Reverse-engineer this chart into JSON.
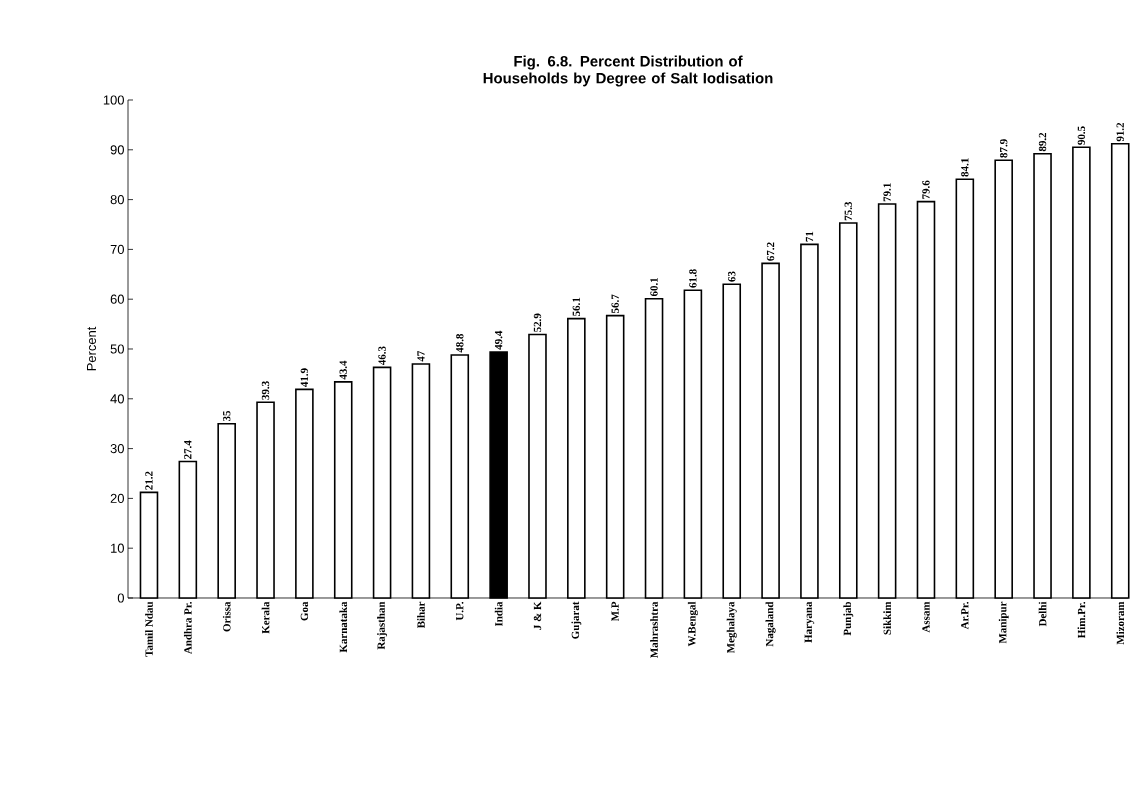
{
  "chart_data": {
    "type": "bar",
    "title": "Fig. 6.8. Percent Distribution of Households by Degree of Salt Iodisation",
    "ylabel": "Percent",
    "categories": [
      "Tamil Ndau",
      "Andhra Pr.",
      "Orissa",
      "Kerala",
      "Goa",
      "Karnataka",
      "Rajasthan",
      "Bihar",
      "U.P.",
      "India",
      "J & K",
      "Gujarat",
      "M.P",
      "Mahrashtra",
      "W.Bengal",
      "Meghalaya",
      "Nagaland",
      "Haryana",
      "Punjab",
      "Sikkim",
      "Assam",
      "Ar.Pr.",
      "Manipur",
      "Delhi",
      "Him.Pr.",
      "Mizoram"
    ],
    "values": [
      21.2,
      27.4,
      35,
      39.3,
      41.9,
      43.4,
      46.3,
      47,
      48.8,
      49.4,
      52.9,
      56.1,
      56.7,
      60.1,
      61.8,
      63,
      67.2,
      71,
      75.3,
      79.1,
      79.6,
      84.1,
      87.9,
      89.2,
      90.5,
      91.2
    ],
    "colors": [
      "#ffffff",
      "#ffffff",
      "#ffffff",
      "#ffffff",
      "#ffffff",
      "#ffffff",
      "#ffffff",
      "#ffffff",
      "#ffffff",
      "#000000",
      "#ffffff",
      "#ffffff",
      "#ffffff",
      "#ffffff",
      "#ffffff",
      "#ffffff",
      "#ffffff",
      "#ffffff",
      "#ffffff",
      "#ffffff",
      "#ffffff",
      "#ffffff",
      "#ffffff",
      "#ffffff",
      "#ffffff",
      "#ffffff"
    ],
    "ylim": [
      0,
      100
    ],
    "yticks": [
      0,
      10,
      20,
      30,
      40,
      50,
      60,
      70,
      80,
      90,
      100
    ],
    "data_labels": true
  }
}
